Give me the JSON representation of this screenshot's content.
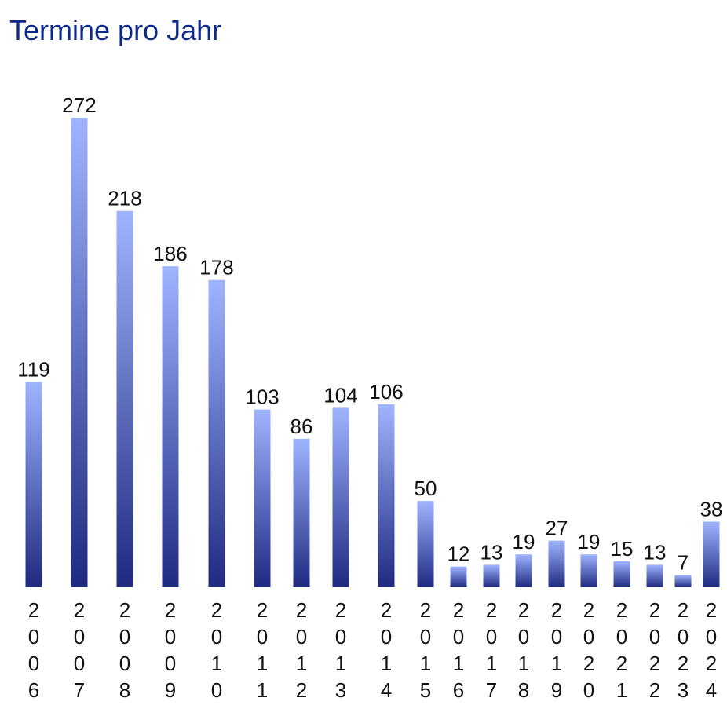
{
  "chart_data": {
    "type": "bar",
    "title": "Termine pro Jahr",
    "categories": [
      "2006",
      "2007",
      "2008",
      "2009",
      "2010",
      "2011",
      "2012",
      "2013",
      "2014",
      "2015",
      "2016",
      "2017",
      "2018",
      "2019",
      "2020",
      "2021",
      "2022",
      "2023",
      "2024"
    ],
    "series": [
      {
        "values": [
          119,
          272,
          218,
          186,
          178,
          103,
          86,
          104,
          106,
          50,
          12,
          13,
          19,
          27,
          19,
          15,
          13,
          7,
          38
        ]
      }
    ],
    "xlabel": "",
    "ylabel": "",
    "ylim": [
      0,
      272
    ],
    "grid": false,
    "legend": "none",
    "colors": {
      "bar_top": "#9fb4ff",
      "bar_bottom": "#1f2a80",
      "title": "#0d2a8a"
    }
  }
}
